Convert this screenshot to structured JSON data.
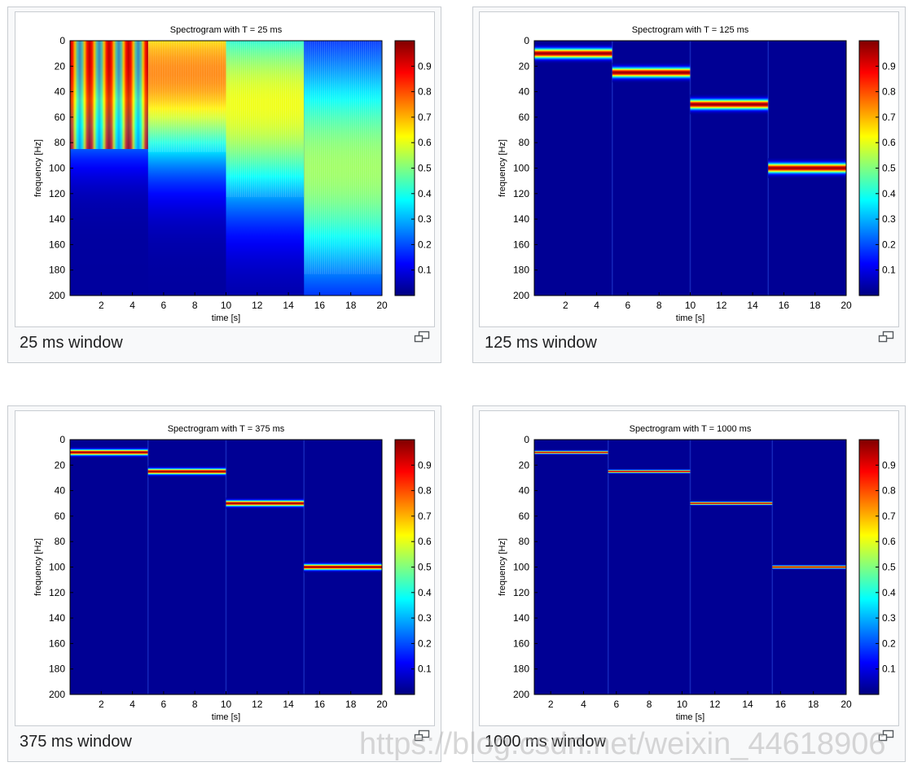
{
  "panels": [
    {
      "caption": "25 ms window"
    },
    {
      "caption": "125 ms window"
    },
    {
      "caption": "375 ms window"
    },
    {
      "caption": "1000 ms window"
    }
  ],
  "enlarge_icon": "magnify-clip-icon",
  "watermark": "https://blog.csdn.net/weixin_44618906",
  "chart_data": [
    {
      "type": "heatmap",
      "title": "Spectrogram with T = 25 ms",
      "xlabel": "time [s]",
      "ylabel": "frequency [Hz]",
      "xlim": [
        0,
        20
      ],
      "ylim": [
        200,
        0
      ],
      "x_ticks": [
        2,
        4,
        6,
        8,
        10,
        12,
        14,
        16,
        18,
        20
      ],
      "y_ticks": [
        0,
        20,
        40,
        60,
        80,
        100,
        120,
        140,
        160,
        180,
        200
      ],
      "colorbar_ticks": [
        0.1,
        0.2,
        0.3,
        0.4,
        0.5,
        0.6,
        0.7,
        0.8,
        0.9
      ],
      "colormap": "jet",
      "segments": [
        {
          "t_start": 0,
          "t_end": 5,
          "freq": 10
        },
        {
          "t_start": 5,
          "t_end": 10,
          "freq": 25
        },
        {
          "t_start": 10,
          "t_end": 15,
          "freq": 50
        },
        {
          "t_start": 15,
          "t_end": 20,
          "freq": 100
        }
      ]
    },
    {
      "type": "heatmap",
      "title": "Spectrogram with T = 125 ms",
      "xlabel": "time [s]",
      "ylabel": "frequency [Hz]",
      "xlim": [
        0,
        20
      ],
      "ylim": [
        200,
        0
      ],
      "x_ticks": [
        2,
        4,
        6,
        8,
        10,
        12,
        14,
        16,
        18,
        20
      ],
      "y_ticks": [
        0,
        20,
        40,
        60,
        80,
        100,
        120,
        140,
        160,
        180,
        200
      ],
      "colorbar_ticks": [
        0.1,
        0.2,
        0.3,
        0.4,
        0.5,
        0.6,
        0.7,
        0.8,
        0.9
      ],
      "colormap": "jet",
      "segments": [
        {
          "t_start": 0,
          "t_end": 5,
          "freq": 10
        },
        {
          "t_start": 5,
          "t_end": 10,
          "freq": 25
        },
        {
          "t_start": 10,
          "t_end": 15,
          "freq": 50
        },
        {
          "t_start": 15,
          "t_end": 20,
          "freq": 100
        }
      ]
    },
    {
      "type": "heatmap",
      "title": "Spectrogram with T = 375 ms",
      "xlabel": "time [s]",
      "ylabel": "frequency [Hz]",
      "xlim": [
        0,
        20
      ],
      "ylim": [
        200,
        0
      ],
      "x_ticks": [
        2,
        4,
        6,
        8,
        10,
        12,
        14,
        16,
        18,
        20
      ],
      "y_ticks": [
        0,
        20,
        40,
        60,
        80,
        100,
        120,
        140,
        160,
        180,
        200
      ],
      "colorbar_ticks": [
        0.1,
        0.2,
        0.3,
        0.4,
        0.5,
        0.6,
        0.7,
        0.8,
        0.9
      ],
      "colormap": "jet",
      "segments": [
        {
          "t_start": 0,
          "t_end": 5,
          "freq": 10
        },
        {
          "t_start": 5,
          "t_end": 10,
          "freq": 25
        },
        {
          "t_start": 10,
          "t_end": 15,
          "freq": 50
        },
        {
          "t_start": 15,
          "t_end": 20,
          "freq": 100
        }
      ]
    },
    {
      "type": "heatmap",
      "title": "Spectrogram with T = 1000 ms",
      "xlabel": "time [s]",
      "ylabel": "frequency [Hz]",
      "xlim": [
        1,
        20
      ],
      "ylim": [
        200,
        0
      ],
      "x_ticks": [
        2,
        4,
        6,
        8,
        10,
        12,
        14,
        16,
        18,
        20
      ],
      "y_ticks": [
        0,
        20,
        40,
        60,
        80,
        100,
        120,
        140,
        160,
        180,
        200
      ],
      "colorbar_ticks": [
        0.1,
        0.2,
        0.3,
        0.4,
        0.5,
        0.6,
        0.7,
        0.8,
        0.9
      ],
      "colormap": "jet",
      "segments": [
        {
          "t_start": 1,
          "t_end": 5.5,
          "freq": 10
        },
        {
          "t_start": 5.5,
          "t_end": 10.5,
          "freq": 25
        },
        {
          "t_start": 10.5,
          "t_end": 15.5,
          "freq": 50
        },
        {
          "t_start": 15.5,
          "t_end": 20,
          "freq": 100
        }
      ]
    }
  ]
}
